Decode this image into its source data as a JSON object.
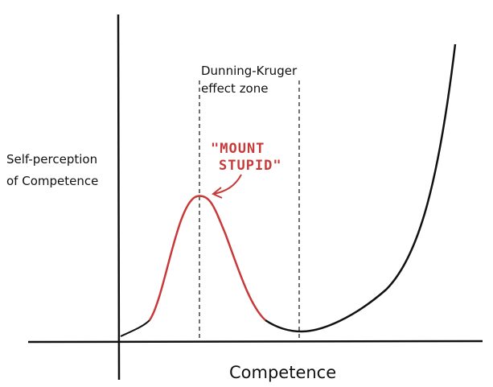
{
  "zone_label": {
    "line1": "Dunning-Kruger",
    "line2": "effect zone"
  },
  "peak_label": {
    "line1": "\"MOUNT",
    "line2": "STUPID\""
  },
  "y_axis_label": {
    "line1": "Self-perception",
    "line2": "of Competence"
  },
  "x_axis_label": "Competence"
}
